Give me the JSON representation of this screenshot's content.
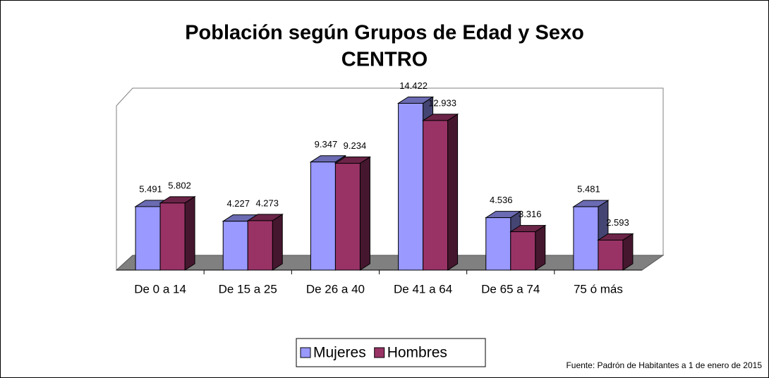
{
  "chart_data": {
    "type": "bar3d",
    "title": "Población según Grupos de Edad y Sexo",
    "subtitle": "CENTRO",
    "categories": [
      "De 0 a 14",
      "De 15 a 25",
      "De 26 a 40",
      "De 41 a 64",
      "De 65 a 74",
      "75 ó más"
    ],
    "series": [
      {
        "name": "Mujeres",
        "color": "#9999ff",
        "values": [
          5491,
          4227,
          9347,
          14422,
          4536,
          5481
        ],
        "value_labels": [
          "5.491",
          "4.227",
          "9.347",
          "14.422",
          "4.536",
          "5.481"
        ]
      },
      {
        "name": "Hombres",
        "color": "#993366",
        "values": [
          5802,
          4273,
          9234,
          12933,
          3316,
          2593
        ],
        "value_labels": [
          "5.802",
          "4.273",
          "9.234",
          "12.933",
          "3.316",
          "2.593"
        ]
      }
    ],
    "ylim": [
      0,
      15000
    ],
    "legend": "bottom",
    "source": "Fuente: Padrón de Habitantes a 1 de enero de 2015"
  }
}
